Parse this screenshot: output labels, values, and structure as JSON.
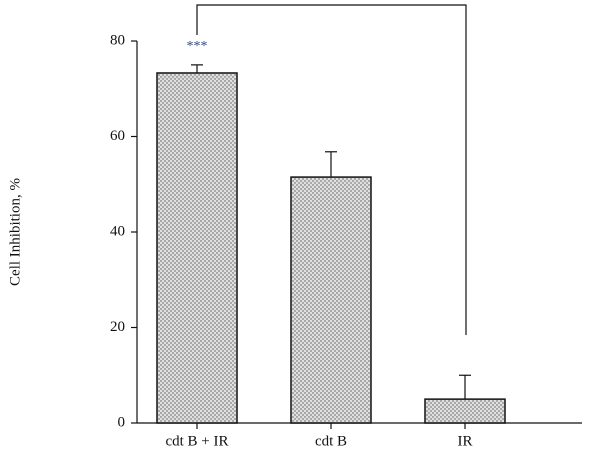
{
  "chart_data": {
    "type": "bar",
    "y_label": "Cell Inhibition, %",
    "categories": [
      "cdt B + IR",
      "cdt B",
      "IR"
    ],
    "values": [
      73.3,
      51.5,
      5.0
    ],
    "errors": [
      1.7,
      5.3,
      5.0
    ],
    "annotation": "***",
    "color": "#d8d8d8",
    "ylim": [
      0,
      80
    ],
    "yticks": [
      0,
      20,
      40,
      60,
      80
    ]
  }
}
